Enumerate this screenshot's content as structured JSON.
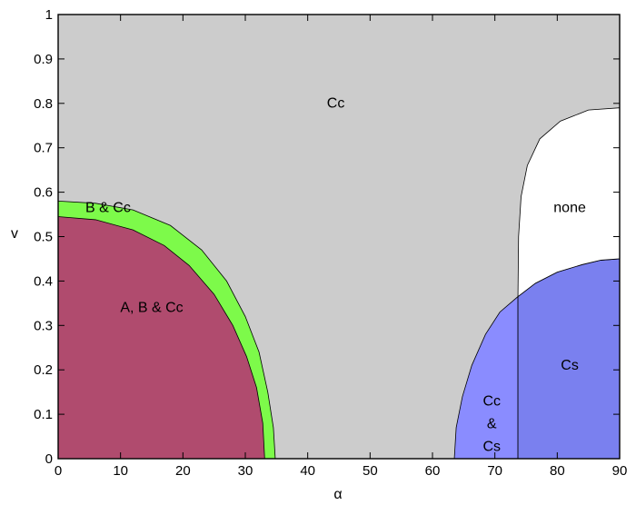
{
  "chart_data": {
    "type": "area",
    "title": "",
    "xlabel": "α",
    "ylabel": "v",
    "xlim": [
      0,
      90
    ],
    "ylim": [
      0,
      1
    ],
    "xticks": [
      "0",
      "10",
      "20",
      "30",
      "40",
      "50",
      "60",
      "70",
      "80",
      "90"
    ],
    "yticks": [
      "0",
      "0.1",
      "0.2",
      "0.3",
      "0.4",
      "0.5",
      "0.6",
      "0.7",
      "0.8",
      "0.9",
      "1"
    ],
    "grid": false,
    "regions": [
      {
        "label": "Cc",
        "color": "#cccccc",
        "label_at": [
          44.5,
          0.79
        ],
        "boundary": []
      },
      {
        "label": "B & Cc",
        "color": "#7dfa4a",
        "label_at": [
          8,
          0.555
        ],
        "boundary": [
          [
            0,
            0.58
          ],
          [
            6,
            0.575
          ],
          [
            12,
            0.56
          ],
          [
            18,
            0.525
          ],
          [
            23,
            0.47
          ],
          [
            27,
            0.4
          ],
          [
            30,
            0.32
          ],
          [
            32.2,
            0.24
          ],
          [
            33.6,
            0.15
          ],
          [
            34.5,
            0.07
          ],
          [
            34.8,
            0
          ]
        ]
      },
      {
        "label": "A, B & Cc",
        "color": "#b04b6e",
        "label_at": [
          15,
          0.33
        ],
        "boundary": [
          [
            0,
            0.545
          ],
          [
            6,
            0.538
          ],
          [
            12,
            0.515
          ],
          [
            17,
            0.48
          ],
          [
            21,
            0.435
          ],
          [
            25,
            0.37
          ],
          [
            28,
            0.3
          ],
          [
            30.2,
            0.23
          ],
          [
            31.8,
            0.16
          ],
          [
            32.8,
            0.08
          ],
          [
            33.1,
            0
          ]
        ]
      },
      {
        "label": "Cc\n&\nCs",
        "color": "#8a8cff",
        "label_at": [
          69.5,
          0.12
        ],
        "boundary": [
          [
            63.5,
            0
          ],
          [
            63.8,
            0.07
          ],
          [
            64.8,
            0.14
          ],
          [
            66.3,
            0.21
          ],
          [
            68.5,
            0.28
          ],
          [
            70.8,
            0.33
          ],
          [
            73.7,
            0.365
          ],
          [
            73.7,
            0
          ]
        ]
      },
      {
        "label": "Cs",
        "color": "#7a80ef",
        "label_at": [
          82,
          0.2
        ],
        "boundary": [
          [
            73.7,
            0
          ],
          [
            73.7,
            0.365
          ],
          [
            76.5,
            0.395
          ],
          [
            80,
            0.42
          ],
          [
            84,
            0.437
          ],
          [
            87,
            0.447
          ],
          [
            90,
            0.45
          ],
          [
            90,
            0
          ]
        ]
      },
      {
        "label": "none",
        "color": "#ffffff",
        "label_at": [
          82,
          0.555
        ],
        "boundary": [
          [
            73.7,
            0.365
          ],
          [
            73.8,
            0.5
          ],
          [
            74.2,
            0.59
          ],
          [
            75.2,
            0.66
          ],
          [
            77.2,
            0.72
          ],
          [
            80.5,
            0.76
          ],
          [
            85,
            0.785
          ],
          [
            90,
            0.79
          ],
          [
            90,
            0.45
          ],
          [
            87,
            0.447
          ],
          [
            84,
            0.437
          ],
          [
            80,
            0.42
          ],
          [
            76.5,
            0.395
          ]
        ]
      }
    ]
  }
}
